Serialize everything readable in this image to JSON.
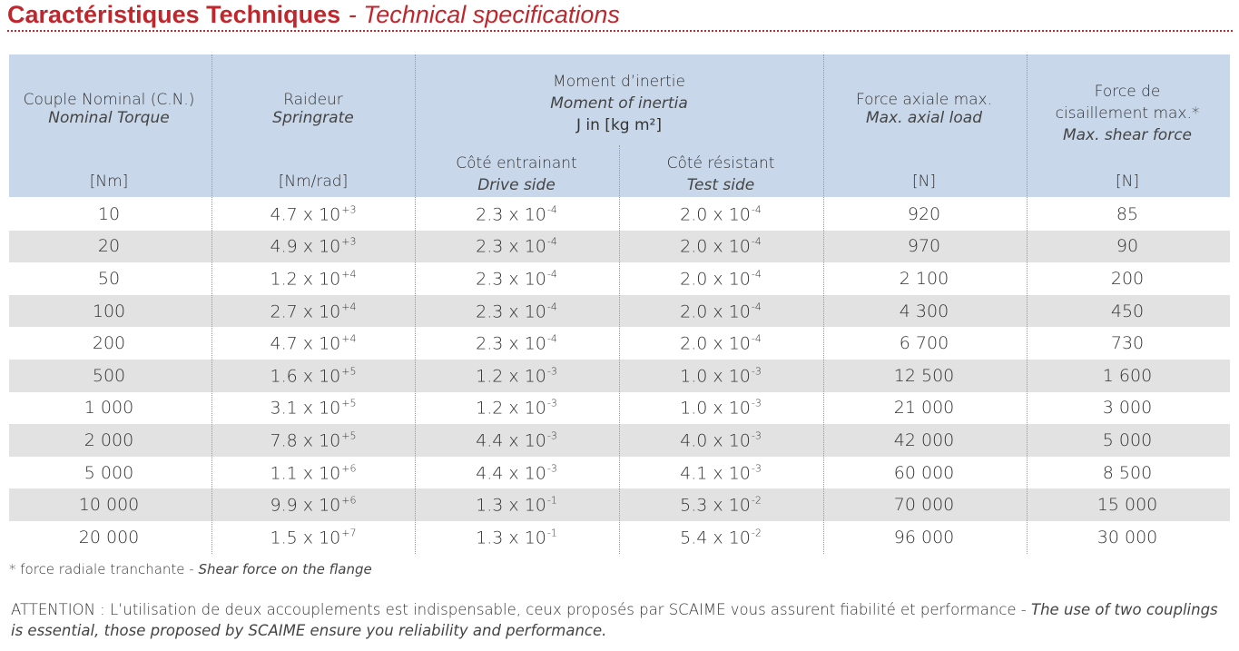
{
  "header": {
    "title": "Caractéristiques Techniques",
    "subtitle": "- Technical specifications"
  },
  "table": {
    "headers": {
      "torque": {
        "fr": "Couple Nominal (C.N.)",
        "en": "Nominal Torque",
        "unit": "[Nm]"
      },
      "springrate": {
        "fr": "Raideur",
        "en": "Springrate",
        "unit": "[Nm/rad]"
      },
      "inertia": {
        "fr": "Moment d’inertie",
        "en": "Moment of inertia",
        "unit": "J in [kg m²]",
        "drive": {
          "fr": "Côté entrainant",
          "en": "Drive side"
        },
        "test": {
          "fr": "Côté résistant",
          "en": "Test side"
        }
      },
      "axial": {
        "fr": "Force axiale max.",
        "en": "Max. axial load",
        "unit": "[N]"
      },
      "shear": {
        "fr1": "Force de",
        "fr2": "cisaillement max.*",
        "en": "Max. shear force",
        "unit": "[N]"
      }
    },
    "rows": [
      [
        "10",
        [
          "4.7 x 10",
          "+3"
        ],
        [
          "2.3 x 10",
          "-4"
        ],
        [
          "2.0 x 10",
          "-4"
        ],
        "920",
        "85"
      ],
      [
        "20",
        [
          "4.9 x 10",
          "+3"
        ],
        [
          "2.3 x 10",
          "-4"
        ],
        [
          "2.0 x 10",
          "-4"
        ],
        "970",
        "90"
      ],
      [
        "50",
        [
          "1.2 x 10",
          "+4"
        ],
        [
          "2.3 x 10",
          "-4"
        ],
        [
          "2.0 x 10",
          "-4"
        ],
        "2 100",
        "200"
      ],
      [
        "100",
        [
          "2.7 x 10",
          "+4"
        ],
        [
          "2.3 x 10",
          "-4"
        ],
        [
          "2.0 x 10",
          "-4"
        ],
        "4 300",
        "450"
      ],
      [
        "200",
        [
          "4.7 x 10",
          "+4"
        ],
        [
          "2.3 x 10",
          "-4"
        ],
        [
          "2.0 x 10",
          "-4"
        ],
        "6 700",
        "730"
      ],
      [
        "500",
        [
          "1.6 x 10",
          "+5"
        ],
        [
          "1.2 x 10",
          "-3"
        ],
        [
          "1.0 x 10",
          "-3"
        ],
        "12 500",
        "1 600"
      ],
      [
        "1 000",
        [
          "3.1 x 10",
          "+5"
        ],
        [
          "1.2 x 10",
          "-3"
        ],
        [
          "1.0 x 10",
          "-3"
        ],
        "21 000",
        "3 000"
      ],
      [
        "2 000",
        [
          "7.8 x 10",
          "+5"
        ],
        [
          "4.4 x 10",
          "-3"
        ],
        [
          "4.0 x 10",
          "-3"
        ],
        "42 000",
        "5 000"
      ],
      [
        "5 000",
        [
          "1.1 x 10",
          "+6"
        ],
        [
          "4.4 x 10",
          "-3"
        ],
        [
          "4.1 x 10",
          "-3"
        ],
        "60 000",
        "8 500"
      ],
      [
        "10 000",
        [
          "9.9 x 10",
          "+6"
        ],
        [
          "1.3 x 10",
          "-1"
        ],
        [
          "5.3 x 10",
          "-2"
        ],
        "70 000",
        "15 000"
      ],
      [
        "20 000",
        [
          "1.5 x 10",
          "+7"
        ],
        [
          "1.3 x 10",
          "-1"
        ],
        [
          "5.4 x 10",
          "-2"
        ],
        "96 000",
        "30 000"
      ]
    ]
  },
  "footnote": {
    "text": "* force radiale tranchante -",
    "italic": "Shear force on the flange"
  },
  "attention": {
    "text": "ATTENTION : L’utilisation de deux accouplements est indispensable, ceux proposés par SCAIME vous assurent fiabilité et performance -",
    "italic": "The use of two couplings is essential, those proposed by SCAIME ensure you reliability and performance."
  }
}
